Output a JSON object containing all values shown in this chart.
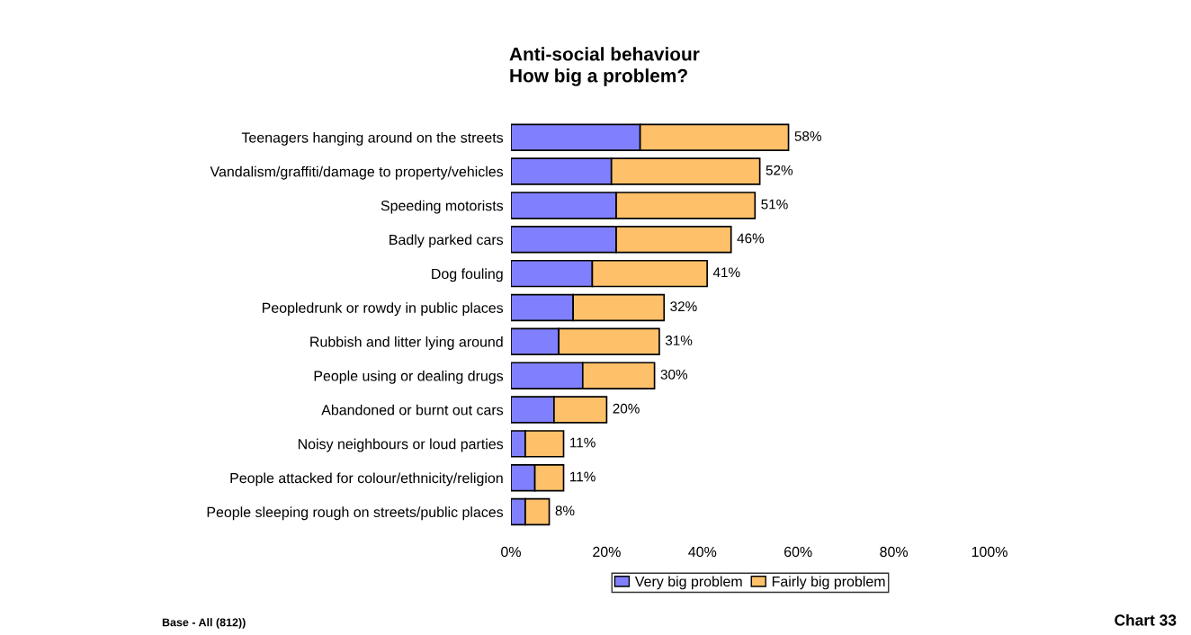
{
  "chart_data": {
    "type": "bar",
    "orientation": "horizontal",
    "stacked": true,
    "title": "Anti-social behaviour\nHow big a problem?",
    "categories": [
      "Teenagers hanging around on the streets",
      "Vandalism/graffiti/damage to property/vehicles",
      "Speeding motorists",
      "Badly parked cars",
      "Dog fouling",
      "Peopledrunk or rowdy in public places",
      "Rubbish and litter lying around",
      "People using or dealing drugs",
      "Abandoned or burnt out cars",
      "Noisy neighbours or loud parties",
      "People attacked for colour/ethnicity/religion",
      "People sleeping rough on streets/public places"
    ],
    "series": [
      {
        "name": "Very big problem",
        "color": "#8080ff",
        "values": [
          27,
          21,
          22,
          22,
          17,
          13,
          10,
          15,
          9,
          3,
          5,
          3
        ]
      },
      {
        "name": "Fairly big problem",
        "color": "#ffc06a",
        "values": [
          31,
          31,
          29,
          24,
          24,
          19,
          21,
          15,
          11,
          8,
          6,
          5
        ]
      }
    ],
    "totals": [
      "58%",
      "52%",
      "51%",
      "46%",
      "41%",
      "32%",
      "31%",
      "30%",
      "20%",
      "11%",
      "11%",
      "8%"
    ],
    "xlim": [
      0,
      100
    ],
    "xticks": [
      {
        "value": 0,
        "label": "0%"
      },
      {
        "value": 20,
        "label": "20%"
      },
      {
        "value": 40,
        "label": "40%"
      },
      {
        "value": 60,
        "label": "60%"
      },
      {
        "value": 80,
        "label": "80%"
      },
      {
        "value": 100,
        "label": "100%"
      }
    ],
    "grid": false,
    "legend": "bottom",
    "annotations": [
      "Base - All (812))",
      "Chart 33"
    ]
  }
}
